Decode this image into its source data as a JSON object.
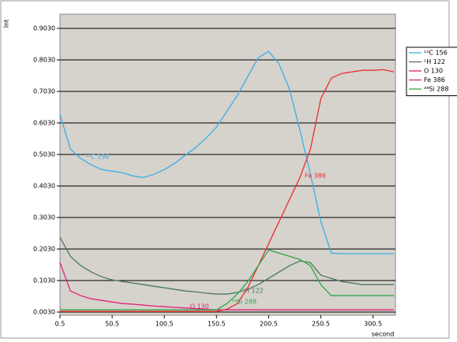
{
  "chart_data": {
    "type": "line",
    "y_label": "Int",
    "x_label": "second",
    "x": [
      0.5,
      10.5,
      20.5,
      30.5,
      40.5,
      50.5,
      60.5,
      70.5,
      80.5,
      90.5,
      100.5,
      110.5,
      120.5,
      130.5,
      140.5,
      150.5,
      160.5,
      170.5,
      180.5,
      190.5,
      200.5,
      210.5,
      220.5,
      230.5,
      240.5,
      250.5,
      260.5,
      270.5,
      280.5,
      290.5,
      300.5,
      310.5,
      320.5
    ],
    "series": [
      {
        "name": "¹²C 156",
        "color": "#38b0e8",
        "values": [
          0.63,
          0.52,
          0.49,
          0.47,
          0.455,
          0.45,
          0.445,
          0.435,
          0.43,
          0.44,
          0.455,
          0.475,
          0.5,
          0.525,
          0.555,
          0.59,
          0.64,
          0.69,
          0.75,
          0.81,
          0.83,
          0.79,
          0.71,
          0.58,
          0.44,
          0.29,
          0.19,
          0.188,
          0.188,
          0.188,
          0.188,
          0.188,
          0.188
        ]
      },
      {
        "name": "¹H 122",
        "color": "#4a7a5a",
        "values": [
          0.24,
          0.18,
          0.15,
          0.13,
          0.115,
          0.105,
          0.1,
          0.095,
          0.09,
          0.085,
          0.08,
          0.075,
          0.07,
          0.067,
          0.063,
          0.06,
          0.06,
          0.065,
          0.075,
          0.09,
          0.11,
          0.13,
          0.15,
          0.165,
          0.16,
          0.12,
          0.11,
          0.1,
          0.095,
          0.09,
          0.09,
          0.09,
          0.09
        ]
      },
      {
        "name": "O 130",
        "color": "#e0207a",
        "values": [
          0.16,
          0.07,
          0.055,
          0.045,
          0.04,
          0.035,
          0.03,
          0.028,
          0.025,
          0.022,
          0.02,
          0.018,
          0.016,
          0.014,
          0.012,
          0.01,
          0.01,
          0.01,
          0.01,
          0.01,
          0.01,
          0.01,
          0.01,
          0.01,
          0.01,
          0.01,
          0.01,
          0.01,
          0.01,
          0.01,
          0.01,
          0.01,
          0.01
        ]
      },
      {
        "name": "Fe 386",
        "color": "#e83030",
        "values": [
          0.005,
          0.005,
          0.005,
          0.005,
          0.005,
          0.005,
          0.005,
          0.005,
          0.005,
          0.005,
          0.005,
          0.005,
          0.005,
          0.005,
          0.005,
          0.005,
          0.012,
          0.03,
          0.08,
          0.15,
          0.22,
          0.29,
          0.36,
          0.43,
          0.52,
          0.68,
          0.745,
          0.76,
          0.765,
          0.77,
          0.77,
          0.772,
          0.765
        ]
      },
      {
        "name": "²⁸Si 288",
        "color": "#2ea84a",
        "values": [
          0.01,
          0.01,
          0.01,
          0.01,
          0.01,
          0.01,
          0.01,
          0.01,
          0.01,
          0.01,
          0.01,
          0.01,
          0.01,
          0.01,
          0.01,
          0.01,
          0.03,
          0.06,
          0.1,
          0.15,
          0.2,
          0.19,
          0.18,
          0.17,
          0.15,
          0.09,
          0.055,
          0.055,
          0.055,
          0.055,
          0.055,
          0.055,
          0.055
        ]
      }
    ],
    "xlim": [
      0.5,
      322
    ],
    "ylim": [
      -0.007,
      0.948
    ],
    "xticks": [
      0.5,
      50.5,
      100.5,
      150.5,
      200.5,
      250.5,
      300.5
    ],
    "yticks": [
      {
        "value": 0.003,
        "label": "0.0030"
      },
      {
        "value": 0.103,
        "label": "0.1030"
      },
      {
        "value": 0.203,
        "label": "0.2030"
      },
      {
        "value": 0.303,
        "label": "0.3030"
      },
      {
        "value": 0.403,
        "label": "0.4030"
      },
      {
        "value": 0.503,
        "label": "0.5030"
      },
      {
        "value": 0.603,
        "label": "0.6030"
      },
      {
        "value": 0.703,
        "label": "0.7030"
      },
      {
        "value": 0.803,
        "label": "0.8030"
      },
      {
        "value": 0.903,
        "label": "0.9030"
      }
    ],
    "grid": true,
    "legend": "right",
    "plot_background": "#d6d2cc"
  }
}
